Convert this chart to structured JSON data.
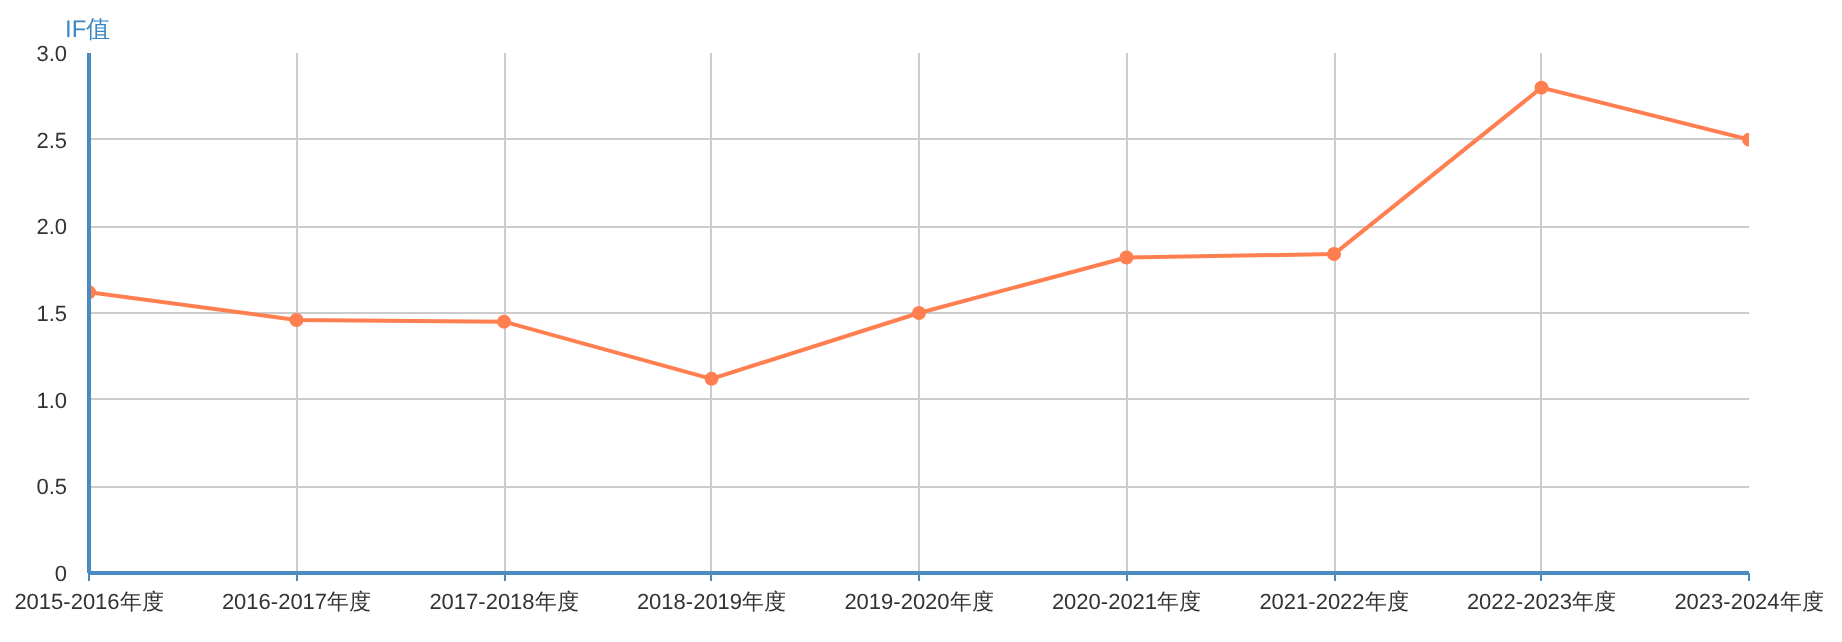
{
  "chart_data": {
    "type": "line",
    "ylabel": "IF值",
    "categories": [
      "2015-2016年度",
      "2016-2017年度",
      "2017-2018年度",
      "2018-2019年度",
      "2019-2020年度",
      "2020-2021年度",
      "2021-2022年度",
      "2022-2023年度",
      "2023-2024年度"
    ],
    "series": [
      {
        "color": "#ff7f50",
        "values": [
          1.62,
          1.46,
          1.45,
          1.12,
          1.5,
          1.82,
          1.84,
          2.8,
          2.5
        ]
      }
    ],
    "ylim": [
      0,
      3.0
    ],
    "yticks": [
      0,
      {
        "value": 0.5,
        "label": "0.5"
      },
      {
        "value": 1,
        "label": "1.0"
      },
      {
        "value": 1.5,
        "label": "1.5"
      },
      {
        "value": 2,
        "label": "2.0"
      },
      {
        "value": 2.5,
        "label": "2.5"
      },
      {
        "value": 3,
        "label": "3.0"
      }
    ],
    "grid": true,
    "marker": "circle",
    "line_style": "solid"
  }
}
